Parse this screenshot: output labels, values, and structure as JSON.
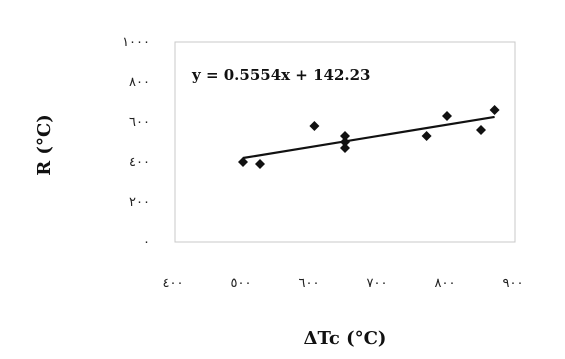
{
  "chart_data": {
    "type": "scatter",
    "title": "",
    "xlabel": "ΔTc (°C)",
    "ylabel": "R (°C)",
    "xlim": [
      400,
      900
    ],
    "ylim": [
      0,
      1000
    ],
    "x_ticks": [
      400,
      500,
      600,
      700,
      800,
      900
    ],
    "y_ticks": [
      0,
      200,
      400,
      600,
      800,
      1000
    ],
    "x_tick_labels": [
      "٤٠٠",
      "٥٠٠",
      "٦٠٠",
      "٧٠٠",
      "٨٠٠",
      "٩٠٠"
    ],
    "y_tick_labels": [
      "٠",
      "٢٠٠",
      "٤٠٠",
      "٦٠٠",
      "٨٠٠",
      "١٠٠٠"
    ],
    "grid": false,
    "legend": "none",
    "marker_color": "#111111",
    "trendline_color": "#111111",
    "series": [
      {
        "points": [
          {
            "x": 500,
            "y": 400
          },
          {
            "x": 525,
            "y": 390
          },
          {
            "x": 605,
            "y": 580
          },
          {
            "x": 650,
            "y": 530
          },
          {
            "x": 650,
            "y": 500
          },
          {
            "x": 650,
            "y": 470
          },
          {
            "x": 770,
            "y": 530
          },
          {
            "x": 800,
            "y": 630
          },
          {
            "x": 850,
            "y": 560
          },
          {
            "x": 870,
            "y": 660
          }
        ]
      }
    ],
    "trendline": {
      "slope": 0.5554,
      "intercept": 142.23,
      "x_range": [
        500,
        870
      ],
      "equation_label": "y = 0.5554x + 142.23"
    }
  }
}
